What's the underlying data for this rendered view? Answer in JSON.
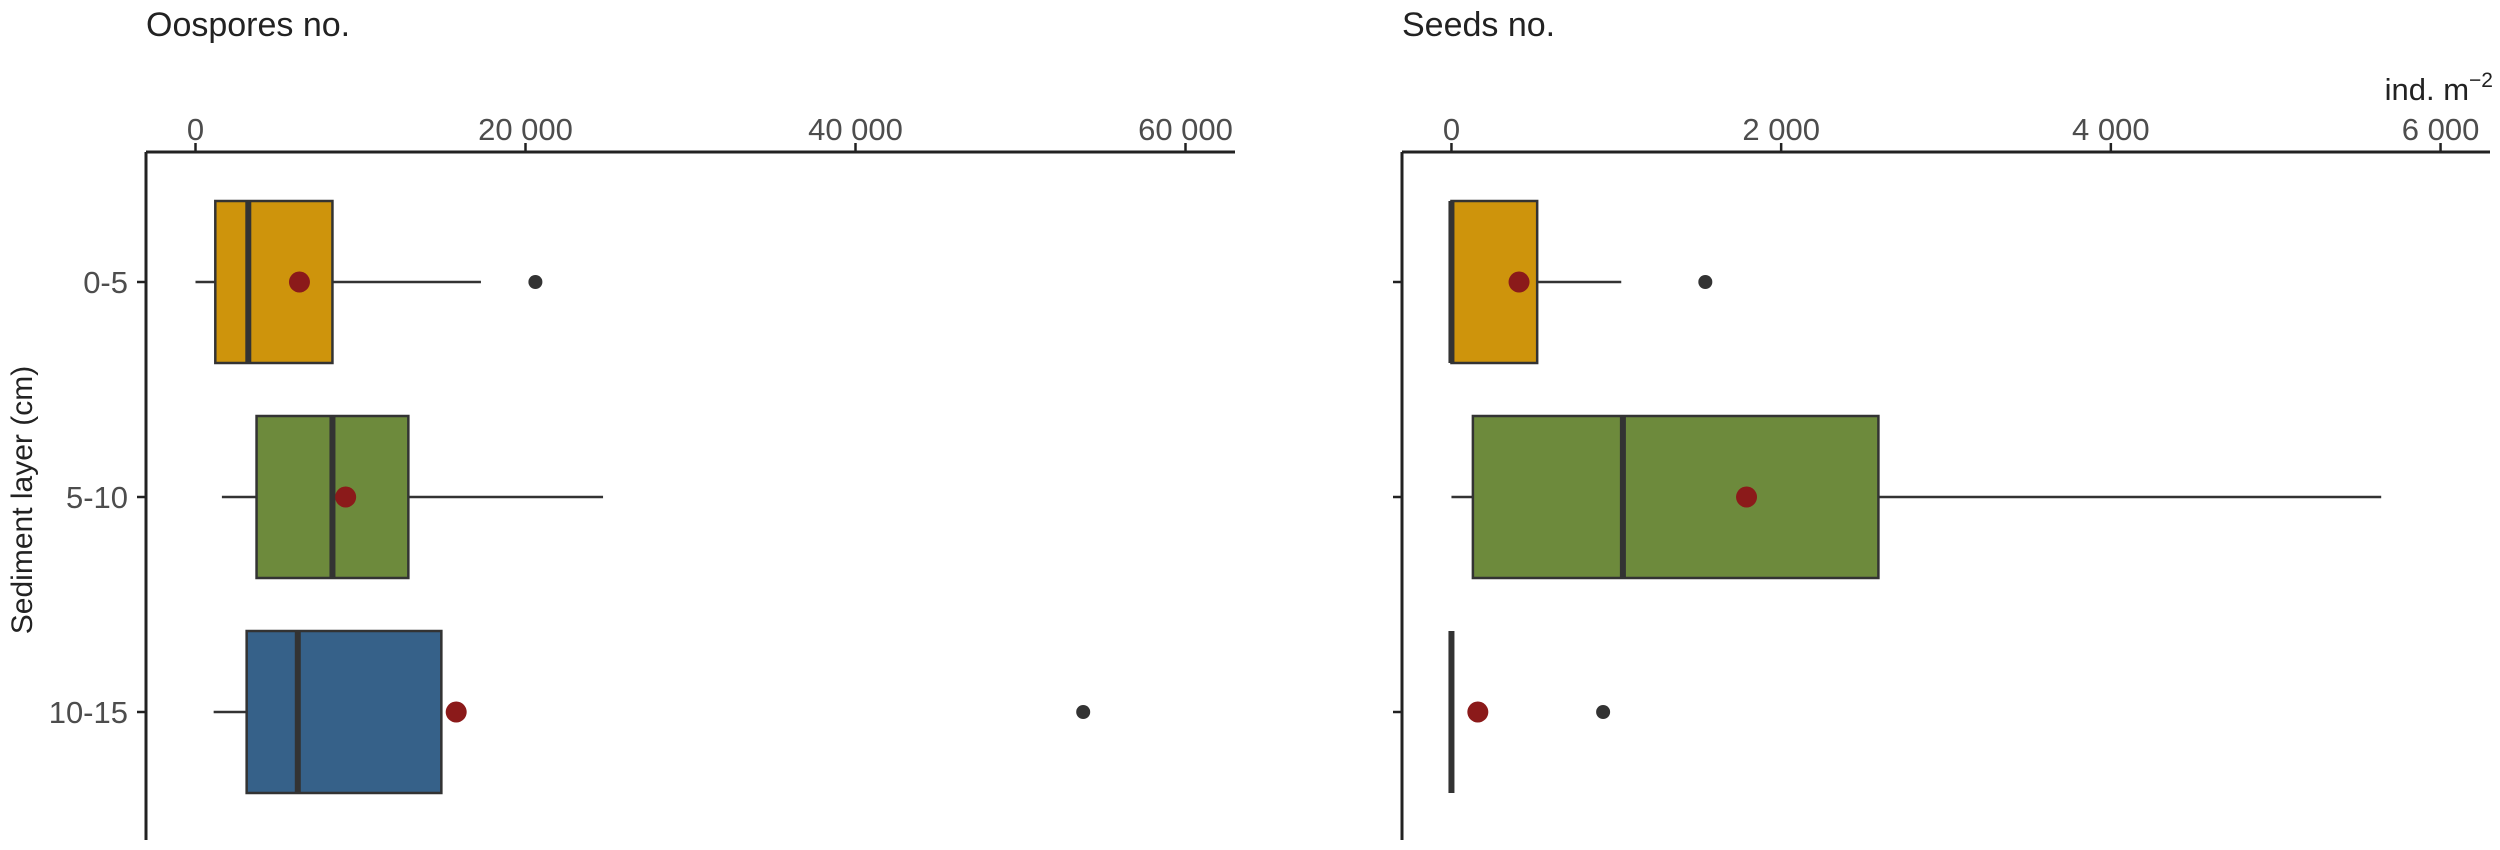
{
  "colors": {
    "0-5": "#CE940C",
    "5-10": "#6D8A3C",
    "10-15": "#366189",
    "mean_point": "#8B1A1A",
    "outlier": "#333333"
  },
  "y_axis_label": "Sediment layer (cm)",
  "categories": [
    "0-5",
    "5-10",
    "10-15"
  ],
  "unit_label": {
    "base": "ind. m",
    "sup": "−2"
  },
  "chart_data": [
    {
      "type": "box",
      "title": "Oospores no.",
      "xlim": [
        -3000,
        63000
      ],
      "ticks": [
        0,
        20000,
        40000,
        60000
      ],
      "tick_labels": [
        "0",
        "20 000",
        "40 000",
        "60 000"
      ],
      "series": [
        {
          "category": "0-5",
          "whisker_low": 0,
          "q1": 1200,
          "median": 3200,
          "q3": 8300,
          "whisker_high": 17300,
          "mean": 6300,
          "outliers": [
            20600
          ]
        },
        {
          "category": "5-10",
          "whisker_low": 1600,
          "q1": 3700,
          "median": 8300,
          "q3": 12900,
          "whisker_high": 24700,
          "mean": 9100,
          "outliers": []
        },
        {
          "category": "10-15",
          "whisker_low": 1100,
          "q1": 3100,
          "median": 6200,
          "q3": 14900,
          "whisker_high": 14900,
          "mean": 15800,
          "outliers": [
            53800
          ]
        }
      ]
    },
    {
      "type": "box",
      "title": "Seeds no.",
      "xlim": [
        -300,
        6300
      ],
      "ticks": [
        0,
        2000,
        4000,
        6000
      ],
      "tick_labels": [
        "0",
        "2 000",
        "4 000",
        "6 000"
      ],
      "series": [
        {
          "category": "0-5",
          "whisker_low": 0,
          "q1": 0,
          "median": 0,
          "q3": 520,
          "whisker_high": 1030,
          "mean": 410,
          "outliers": [
            1540
          ]
        },
        {
          "category": "5-10",
          "whisker_low": 0,
          "q1": 130,
          "median": 1040,
          "q3": 2590,
          "whisker_high": 5640,
          "mean": 1790,
          "outliers": []
        },
        {
          "category": "10-15",
          "whisker_low": 0,
          "q1": 0,
          "median": 0,
          "q3": 0,
          "whisker_high": 0,
          "mean": 160,
          "outliers": [
            920
          ]
        }
      ]
    }
  ]
}
